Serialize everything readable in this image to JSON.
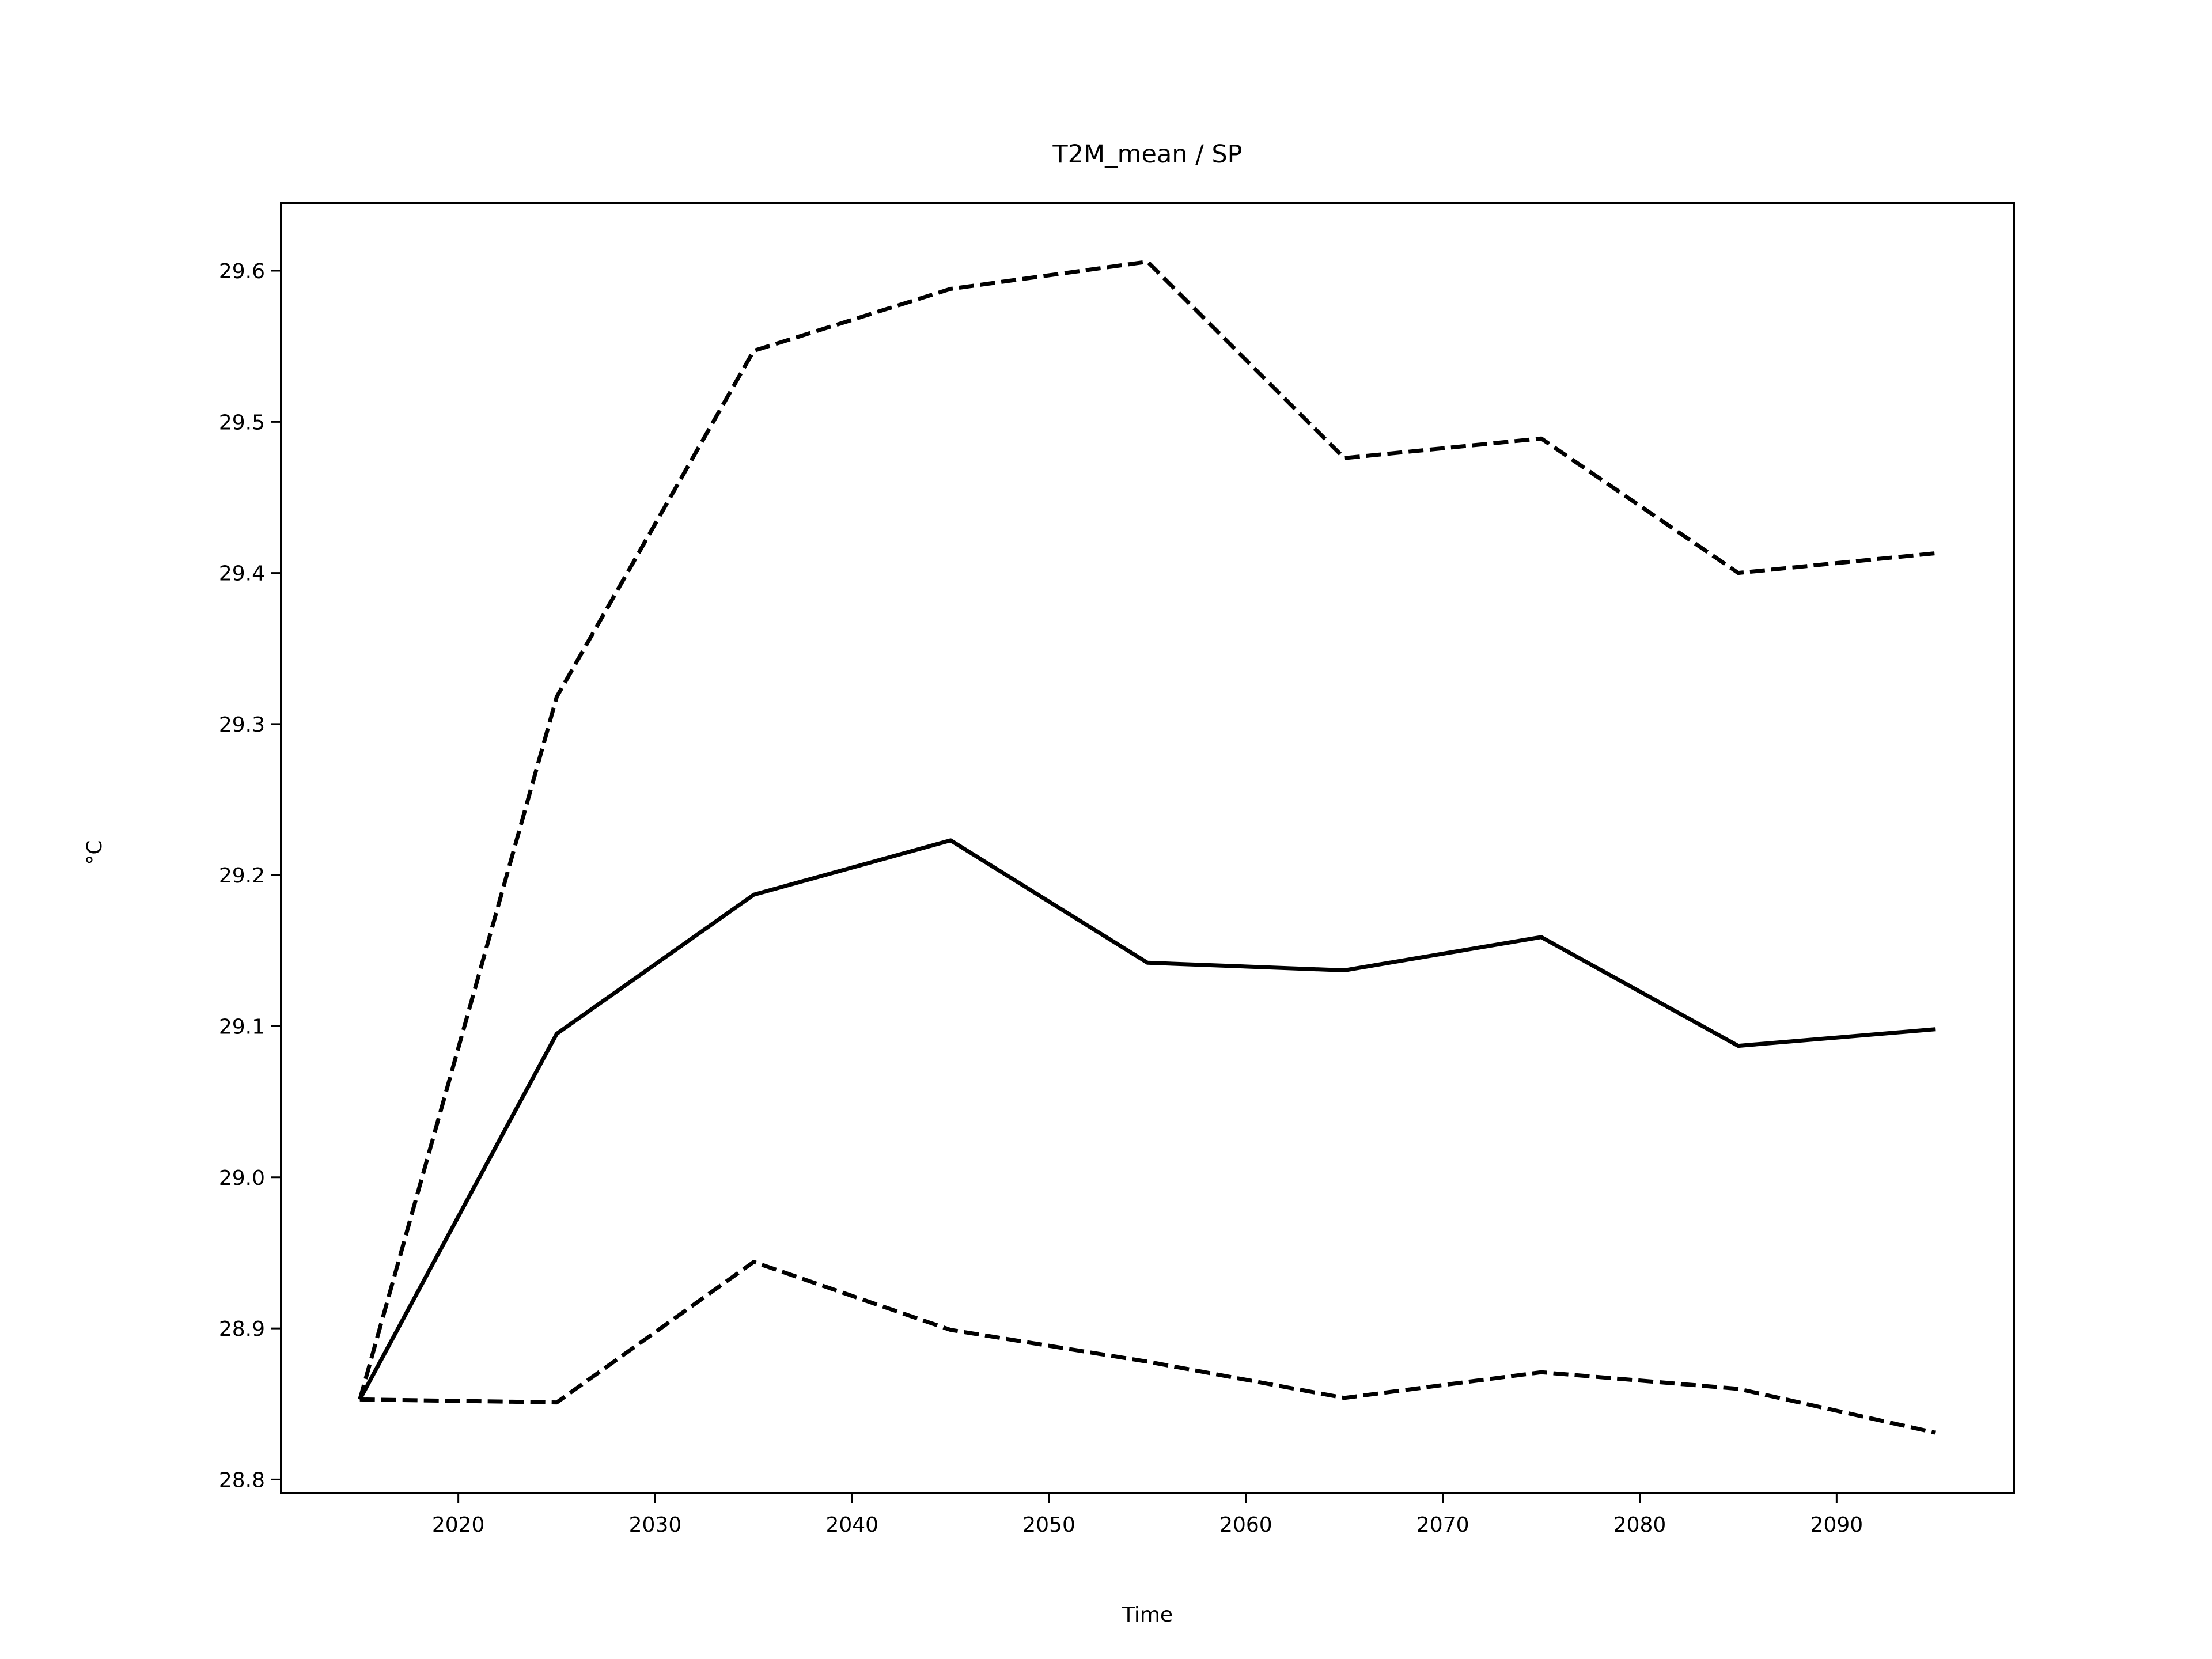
{
  "chart_data": {
    "type": "line",
    "title": "T2M_mean / SP",
    "xlabel": "Time",
    "ylabel": "°C",
    "xlim": [
      2011,
      2099
    ],
    "ylim": [
      28.791,
      29.645
    ],
    "xticks": [
      2020,
      2030,
      2040,
      2050,
      2060,
      2070,
      2080,
      2090
    ],
    "yticks": [
      28.8,
      28.9,
      29.0,
      29.1,
      29.2,
      29.3,
      29.4,
      29.5,
      29.6
    ],
    "ytick_labels": [
      "28.8",
      "28.9",
      "29.0",
      "29.1",
      "29.2",
      "29.3",
      "29.4",
      "29.5",
      "29.6"
    ],
    "grid": false,
    "legend": "none",
    "x": [
      2015,
      2025,
      2035,
      2045,
      2055,
      2065,
      2075,
      2085,
      2095
    ],
    "series": [
      {
        "style": "solid",
        "color": "#000000",
        "values": [
          28.853,
          29.095,
          29.187,
          29.223,
          29.142,
          29.137,
          29.159,
          29.087,
          29.098
        ]
      },
      {
        "style": "dashed",
        "color": "#000000",
        "values": [
          28.853,
          29.318,
          29.547,
          29.588,
          29.606,
          29.476,
          29.489,
          29.4,
          29.413
        ]
      },
      {
        "style": "dashed",
        "color": "#000000",
        "values": [
          28.853,
          28.851,
          28.944,
          28.899,
          28.878,
          28.854,
          28.871,
          28.86,
          28.831
        ]
      }
    ]
  }
}
